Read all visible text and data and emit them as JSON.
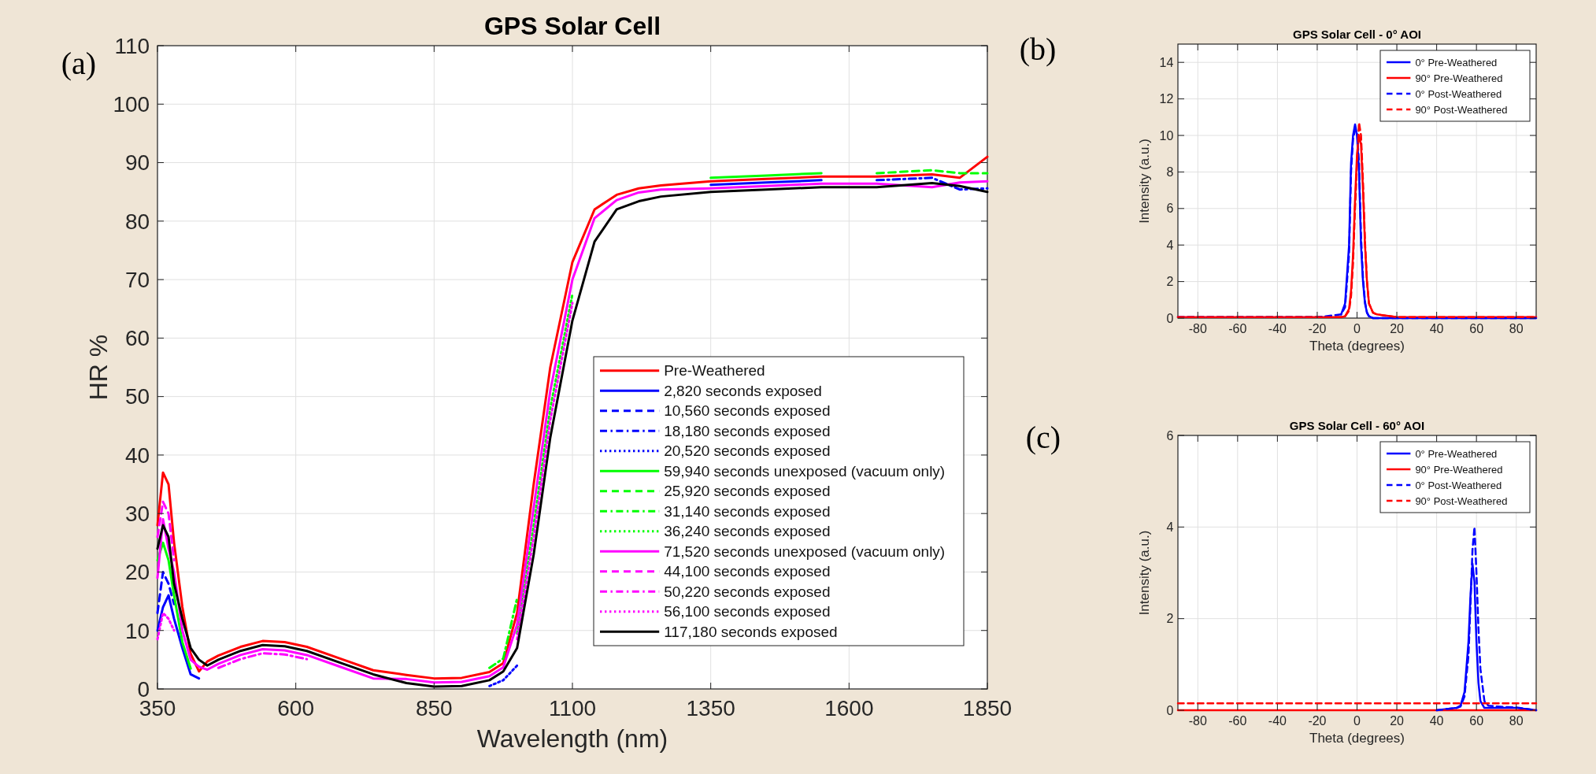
{
  "chart_data": [
    {
      "type": "line",
      "title": "GPS Solar Cell",
      "xlabel": "Wavelength (nm)",
      "ylabel": "HR %",
      "annotations": [
        "(a)"
      ],
      "grid": true,
      "legend": "bottom right",
      "x": [
        350,
        360,
        370,
        380,
        395,
        410,
        425,
        440,
        460,
        500,
        540,
        580,
        620,
        680,
        740,
        800,
        850,
        900,
        950,
        975,
        1000,
        1030,
        1060,
        1100,
        1140,
        1180,
        1220,
        1260,
        1350,
        1450,
        1550,
        1650,
        1750,
        1800,
        1850
      ],
      "xlim": [
        350,
        1850
      ],
      "xticks": [
        350,
        600,
        850,
        1100,
        1350,
        1600,
        1850
      ],
      "ylim": [
        0,
        110
      ],
      "yticks": [
        0,
        10,
        20,
        30,
        40,
        50,
        60,
        70,
        80,
        90,
        100,
        110
      ],
      "series": [
        {
          "name": "Pre-Weathered",
          "color": "#ff0000",
          "line_style": "solid",
          "values": [
            28,
            37,
            35,
            25,
            14,
            6,
            3,
            4.7,
            5.7,
            7.2,
            8.2,
            8.0,
            7.2,
            5.2,
            3.2,
            2.4,
            1.8,
            1.9,
            2.9,
            4.4,
            13,
            35,
            55,
            73,
            82,
            84.5,
            85.6,
            86.1,
            86.8,
            87.2,
            87.6,
            87.6,
            88.0,
            87.4,
            91
          ]
        },
        {
          "name": "2,820 seconds exposed",
          "color": "#0000ff",
          "line_style": "solid",
          "values": [
            10,
            14,
            16,
            12,
            7,
            2.5,
            1.8,
            null,
            null,
            null,
            null,
            null,
            null,
            null,
            null,
            null,
            null,
            null,
            null,
            null,
            null,
            null,
            null,
            null,
            null,
            null,
            null,
            null,
            86.2,
            86.6,
            87.0,
            null,
            null,
            null,
            null
          ]
        },
        {
          "name": "10,560 seconds exposed",
          "color": "#0000ff",
          "line_style": "dashed",
          "values": [
            13,
            20,
            18,
            14.5,
            null,
            null,
            null,
            null,
            null,
            null,
            null,
            null,
            null,
            null,
            null,
            null,
            null,
            null,
            null,
            null,
            null,
            null,
            null,
            null,
            null,
            null,
            null,
            null,
            null,
            null,
            null,
            null,
            null,
            null,
            null
          ]
        },
        {
          "name": "18,180 seconds exposed",
          "color": "#0000ff",
          "line_style": "dashdot",
          "values": [
            null,
            null,
            null,
            null,
            null,
            null,
            null,
            null,
            null,
            null,
            null,
            null,
            null,
            null,
            null,
            null,
            null,
            null,
            null,
            null,
            null,
            null,
            null,
            null,
            null,
            null,
            null,
            null,
            null,
            null,
            null,
            87.0,
            87.4,
            85.4,
            85.6
          ]
        },
        {
          "name": "20,520 seconds exposed",
          "color": "#0000ff",
          "line_style": "dotted",
          "values": [
            null,
            null,
            null,
            null,
            null,
            null,
            null,
            null,
            null,
            null,
            null,
            null,
            null,
            null,
            null,
            null,
            null,
            null,
            0.5,
            1.5,
            4,
            null,
            null,
            null,
            null,
            null,
            null,
            null,
            null,
            null,
            null,
            null,
            null,
            null,
            null
          ]
        },
        {
          "name": "59,940 seconds unexposed (vacuum only)",
          "color": "#00ff00",
          "line_style": "solid",
          "values": [
            22,
            25,
            22,
            16,
            8,
            3.5,
            null,
            null,
            null,
            null,
            null,
            null,
            null,
            null,
            null,
            null,
            null,
            null,
            null,
            null,
            null,
            null,
            null,
            null,
            null,
            null,
            null,
            null,
            87.4,
            87.8,
            88.2,
            null,
            null,
            null,
            null
          ]
        },
        {
          "name": "25,920 seconds exposed",
          "color": "#00ff00",
          "line_style": "dashed",
          "values": [
            null,
            null,
            null,
            null,
            null,
            null,
            null,
            null,
            null,
            null,
            null,
            null,
            null,
            null,
            null,
            null,
            null,
            null,
            null,
            null,
            null,
            null,
            null,
            null,
            null,
            null,
            null,
            null,
            null,
            null,
            null,
            88.2,
            88.7,
            88.2,
            88.2
          ]
        },
        {
          "name": "31,140 seconds exposed",
          "color": "#00ff00",
          "line_style": "dashdot",
          "values": [
            null,
            null,
            null,
            null,
            null,
            null,
            null,
            null,
            null,
            null,
            null,
            null,
            null,
            null,
            null,
            null,
            null,
            null,
            3.6,
            5.2,
            15.5,
            null,
            null,
            null,
            null,
            null,
            null,
            null,
            null,
            null,
            null,
            null,
            null,
            null,
            null
          ]
        },
        {
          "name": "36,240 seconds exposed",
          "color": "#00ff00",
          "line_style": "dotted",
          "values": [
            null,
            null,
            null,
            null,
            null,
            null,
            null,
            null,
            null,
            null,
            null,
            null,
            null,
            null,
            null,
            null,
            null,
            null,
            null,
            null,
            9.5,
            28,
            48,
            67.5,
            null,
            null,
            null,
            null,
            null,
            null,
            null,
            null,
            null,
            null,
            null
          ]
        },
        {
          "name": "71,520 seconds unexposed (vacuum only)",
          "color": "#ff00ff",
          "line_style": "solid",
          "values": [
            19,
            29,
            24,
            20,
            10,
            5,
            3.8,
            3.3,
            4.3,
            5.8,
            6.8,
            6.6,
            5.8,
            3.8,
            1.8,
            1.7,
            1.1,
            1.2,
            2.2,
            3.7,
            11,
            31,
            51,
            70,
            80.5,
            83.6,
            84.9,
            85.4,
            85.6,
            86.0,
            86.4,
            86.4,
            85.8,
            86.6,
            86.8
          ]
        },
        {
          "name": "44,100 seconds exposed",
          "color": "#ff00ff",
          "line_style": "dashed",
          "values": [
            26,
            32,
            30,
            22,
            null,
            null,
            null,
            null,
            null,
            null,
            null,
            null,
            null,
            null,
            null,
            null,
            null,
            null,
            null,
            null,
            null,
            null,
            null,
            null,
            null,
            null,
            null,
            null,
            null,
            null,
            null,
            null,
            null,
            null,
            null
          ]
        },
        {
          "name": "50,220 seconds exposed",
          "color": "#ff00ff",
          "line_style": "dashdot",
          "values": [
            null,
            null,
            null,
            null,
            null,
            null,
            null,
            null,
            3.6,
            5.1,
            6.1,
            5.9,
            5.1,
            null,
            null,
            null,
            null,
            null,
            null,
            null,
            null,
            null,
            null,
            null,
            null,
            null,
            null,
            null,
            null,
            null,
            null,
            null,
            null,
            null,
            null
          ]
        },
        {
          "name": "56,100 seconds exposed",
          "color": "#ff00ff",
          "line_style": "dotted",
          "values": [
            8.5,
            13,
            12,
            10,
            null,
            null,
            null,
            null,
            null,
            null,
            null,
            null,
            null,
            null,
            null,
            null,
            null,
            null,
            null,
            null,
            8.5,
            26,
            46,
            66,
            null,
            null,
            null,
            null,
            null,
            null,
            null,
            null,
            null,
            null,
            null
          ]
        },
        {
          "name": "117,180 seconds exposed",
          "color": "#000000",
          "line_style": "solid",
          "values": [
            24,
            28,
            26,
            18,
            12,
            7,
            5,
            4,
            5,
            6.5,
            7.5,
            7.3,
            6.5,
            4.5,
            2.5,
            1,
            0.4,
            0.5,
            1.5,
            3,
            7,
            23,
            43,
            63,
            76.5,
            82,
            83.4,
            84.2,
            85.0,
            85.4,
            85.8,
            85.8,
            86.5,
            86.0,
            85.0
          ]
        }
      ]
    },
    {
      "type": "line",
      "title": "GPS Solar Cell - 0° AOI",
      "xlabel": "Theta (degrees)",
      "ylabel": "Intensity (a.u.)",
      "annotations": [
        "(b)"
      ],
      "grid": true,
      "legend": "top right",
      "x": [
        -90,
        -20,
        -8,
        -6,
        -4,
        -3,
        -2,
        -1,
        0,
        1,
        2,
        3,
        4,
        5,
        6,
        8,
        10,
        20,
        90
      ],
      "xlim": [
        -90,
        90
      ],
      "xticks": [
        -80,
        -60,
        -40,
        -20,
        0,
        20,
        40,
        60,
        80
      ],
      "ylim": [
        0,
        15
      ],
      "yticks": [
        0,
        2,
        4,
        6,
        8,
        10,
        12,
        14
      ],
      "series": [
        {
          "name": "0° Pre-Weathered",
          "color": "#0000ff",
          "line_style": "solid",
          "values": [
            null,
            null,
            0.2,
            0.8,
            4,
            8.5,
            10,
            10.6,
            10,
            8,
            4,
            2,
            0.8,
            0.3,
            0.1,
            0,
            0,
            0,
            0
          ]
        },
        {
          "name": "90° Pre-Weathered",
          "color": "#ff0000",
          "line_style": "solid",
          "values": [
            0.05,
            0.05,
            0.05,
            0.1,
            0.5,
            1.5,
            3.5,
            6.5,
            9,
            10,
            9.5,
            7,
            4,
            2,
            0.8,
            0.3,
            0.2,
            0.05,
            0.05
          ]
        },
        {
          "name": "0° Post-Weathered",
          "color": "#0000ff",
          "line_style": "dashed",
          "values": [
            0.05,
            0.05,
            0.2,
            0.6,
            3.5,
            8,
            9.8,
            10.3,
            10.2,
            8.5,
            4.5,
            2.2,
            0.9,
            0.3,
            0.1,
            0,
            0,
            0,
            0
          ]
        },
        {
          "name": "90° Post-Weathered",
          "color": "#ff0000",
          "line_style": "dashed",
          "values": [
            0.05,
            0.05,
            0.05,
            0.1,
            0.4,
            1.2,
            3,
            6,
            8.5,
            10.7,
            10,
            7.5,
            4.2,
            2,
            0.8,
            0.3,
            0.2,
            0.05,
            0.05
          ]
        }
      ]
    },
    {
      "type": "line",
      "title": "GPS Solar Cell - 60° AOI",
      "xlabel": "Theta (degrees)",
      "ylabel": "Intensity (a.u.)",
      "annotations": [
        "(c)"
      ],
      "grid": true,
      "legend": "top right",
      "x": [
        -90,
        40,
        50,
        52,
        54,
        56,
        57,
        58,
        59,
        60,
        61,
        62,
        64,
        66,
        70,
        80,
        90
      ],
      "xlim": [
        -90,
        90
      ],
      "xticks": [
        -80,
        -60,
        -40,
        -20,
        0,
        20,
        40,
        60,
        80
      ],
      "ylim": [
        0,
        6
      ],
      "yticks": [
        0,
        2,
        4,
        6
      ],
      "series": [
        {
          "name": "0° Pre-Weathered",
          "color": "#0000ff",
          "line_style": "solid",
          "values": [
            null,
            0,
            0.05,
            0.1,
            0.4,
            1.5,
            2.5,
            3.2,
            2.8,
            1.5,
            0.6,
            0.2,
            0.05,
            0.05,
            0.05,
            0.05,
            0
          ]
        },
        {
          "name": "90° Pre-Weathered",
          "color": "#ff0000",
          "line_style": "solid",
          "values": [
            0,
            0,
            0,
            0,
            0,
            0,
            0,
            0,
            0,
            0,
            0,
            0,
            0,
            0,
            0,
            0,
            0
          ]
        },
        {
          "name": "0° Post-Weathered",
          "color": "#0000ff",
          "line_style": "dashed",
          "values": [
            null,
            0,
            0.05,
            0.08,
            0.3,
            1.2,
            2.3,
            3.5,
            4,
            3,
            1.8,
            0.9,
            0.2,
            0.1,
            0.08,
            0.06,
            0
          ]
        },
        {
          "name": "90° Post-Weathered",
          "color": "#ff0000",
          "line_style": "dashed",
          "values": [
            0.15,
            0.15,
            0.15,
            0.15,
            0.15,
            0.15,
            0.15,
            0.15,
            0.15,
            0.15,
            0.15,
            0.15,
            0.15,
            0.15,
            0.15,
            0.15,
            0.15
          ]
        }
      ]
    }
  ]
}
